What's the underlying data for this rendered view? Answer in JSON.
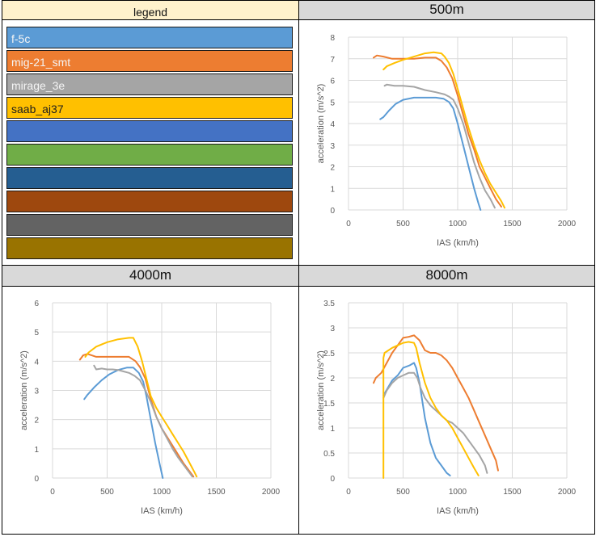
{
  "legend": {
    "title": "legend",
    "items": [
      {
        "label": "f-5c",
        "color": "#5b9bd5"
      },
      {
        "label": "mig-21_smt",
        "color": "#ed7d31"
      },
      {
        "label": "mirage_3e",
        "color": "#a5a5a5"
      },
      {
        "label": "saab_aj37",
        "color": "#ffc000"
      },
      {
        "label": "",
        "color": "#4472c4"
      },
      {
        "label": "",
        "color": "#70ad47"
      },
      {
        "label": "",
        "color": "#255e91"
      },
      {
        "label": "",
        "color": "#9e480e"
      },
      {
        "label": "",
        "color": "#636363"
      },
      {
        "label": "",
        "color": "#997300"
      }
    ]
  },
  "chart_data": [
    {
      "type": "line",
      "title": "500m",
      "xlabel": "IAS (km/h)",
      "ylabel": "acceleration (m/s^2)",
      "xlim": [
        0,
        2000
      ],
      "ylim": [
        0,
        8
      ],
      "xticks": [
        0,
        500,
        1000,
        1500,
        2000
      ],
      "yticks": [
        0,
        1,
        2,
        3,
        4,
        5,
        6,
        7,
        8
      ],
      "grid": true,
      "series": [
        {
          "name": "f-5c",
          "color": "#5b9bd5",
          "x": [
            290,
            320,
            370,
            430,
            500,
            600,
            700,
            800,
            870,
            920,
            960,
            1000,
            1050,
            1100,
            1150,
            1190,
            1210
          ],
          "y": [
            4.2,
            4.3,
            4.6,
            4.9,
            5.1,
            5.2,
            5.2,
            5.2,
            5.15,
            5.0,
            4.7,
            4.0,
            3.0,
            2.0,
            1.0,
            0.3,
            0
          ]
        },
        {
          "name": "mig-21_smt",
          "color": "#ed7d31",
          "x": [
            230,
            260,
            320,
            400,
            500,
            600,
            700,
            800,
            850,
            900,
            950,
            1000,
            1050,
            1100,
            1150,
            1200,
            1250,
            1300,
            1350,
            1400
          ],
          "y": [
            7.05,
            7.15,
            7.1,
            7.0,
            7.0,
            7.0,
            7.05,
            7.05,
            6.9,
            6.6,
            6.1,
            5.3,
            4.4,
            3.5,
            2.8,
            2.0,
            1.5,
            1.0,
            0.5,
            0.15
          ]
        },
        {
          "name": "mirage_3e",
          "color": "#a5a5a5",
          "x": [
            330,
            350,
            420,
            500,
            600,
            700,
            800,
            880,
            920,
            960,
            1000,
            1050,
            1100,
            1150,
            1200,
            1250,
            1300,
            1340
          ],
          "y": [
            5.75,
            5.8,
            5.75,
            5.75,
            5.7,
            5.55,
            5.45,
            5.35,
            5.25,
            5.1,
            4.7,
            4.0,
            3.1,
            2.2,
            1.5,
            0.9,
            0.5,
            0.1
          ]
        },
        {
          "name": "saab_aj37",
          "color": "#ffc000",
          "x": [
            320,
            350,
            420,
            500,
            600,
            700,
            780,
            850,
            880,
            920,
            960,
            1000,
            1050,
            1100,
            1150,
            1200,
            1250,
            1300,
            1350,
            1400,
            1430
          ],
          "y": [
            6.5,
            6.65,
            6.8,
            6.95,
            7.1,
            7.25,
            7.3,
            7.25,
            7.1,
            6.8,
            6.3,
            5.6,
            4.7,
            3.8,
            3.0,
            2.3,
            1.7,
            1.2,
            0.8,
            0.4,
            0.1
          ]
        }
      ]
    },
    {
      "type": "line",
      "title": "4000m",
      "xlabel": "IAS (km/h)",
      "ylabel": "acceleration (m/s^2)",
      "xlim": [
        0,
        2000
      ],
      "ylim": [
        0,
        6
      ],
      "xticks": [
        0,
        500,
        1000,
        1500,
        2000
      ],
      "yticks": [
        0,
        1,
        2,
        3,
        4,
        5,
        6
      ],
      "grid": true,
      "series": [
        {
          "name": "f-5c",
          "color": "#5b9bd5",
          "x": [
            290,
            320,
            380,
            450,
            520,
            600,
            680,
            740,
            790,
            830,
            860,
            900,
            940,
            980,
            1010
          ],
          "y": [
            2.7,
            2.85,
            3.1,
            3.35,
            3.55,
            3.7,
            3.78,
            3.78,
            3.6,
            3.3,
            2.8,
            2.0,
            1.2,
            0.5,
            0
          ]
        },
        {
          "name": "mig-21_smt",
          "color": "#ed7d31",
          "x": [
            250,
            280,
            320,
            400,
            500,
            600,
            700,
            760,
            800,
            850,
            900,
            950,
            1000,
            1050,
            1100,
            1150,
            1200,
            1250,
            1290
          ],
          "y": [
            4.05,
            4.2,
            4.25,
            4.15,
            4.15,
            4.15,
            4.15,
            4.0,
            3.8,
            3.4,
            2.7,
            2.1,
            1.7,
            1.4,
            1.1,
            0.8,
            0.5,
            0.25,
            0.05
          ]
        },
        {
          "name": "mirage_3e",
          "color": "#a5a5a5",
          "x": [
            380,
            400,
            450,
            500,
            550,
            600,
            650,
            700,
            750,
            800,
            850,
            900,
            950,
            1000,
            1050,
            1100,
            1150,
            1200,
            1250,
            1280
          ],
          "y": [
            3.85,
            3.72,
            3.75,
            3.72,
            3.72,
            3.7,
            3.65,
            3.6,
            3.5,
            3.35,
            3.0,
            2.6,
            2.1,
            1.7,
            1.35,
            1.0,
            0.7,
            0.45,
            0.2,
            0.05
          ]
        },
        {
          "name": "saab_aj37",
          "color": "#ffc000",
          "x": [
            300,
            330,
            400,
            500,
            600,
            700,
            740,
            780,
            820,
            860,
            900,
            950,
            1000,
            1050,
            1100,
            1150,
            1200,
            1250,
            1300,
            1320
          ],
          "y": [
            4.15,
            4.3,
            4.5,
            4.65,
            4.75,
            4.8,
            4.8,
            4.5,
            4.0,
            3.4,
            2.8,
            2.4,
            2.1,
            1.8,
            1.5,
            1.2,
            0.9,
            0.55,
            0.2,
            0.05
          ]
        }
      ]
    },
    {
      "type": "line",
      "title": "8000m",
      "xlabel": "IAS (km/h)",
      "ylabel": "acceleration (m/s^2)",
      "xlim": [
        0,
        2000
      ],
      "ylim": [
        0,
        3.5
      ],
      "xticks": [
        0,
        500,
        1000,
        1500,
        2000
      ],
      "yticks": [
        0,
        0.5,
        1,
        1.5,
        2,
        2.5,
        3,
        3.5
      ],
      "grid": true,
      "series": [
        {
          "name": "f-5c",
          "color": "#5b9bd5",
          "x": [
            320,
            360,
            400,
            450,
            500,
            560,
            600,
            620,
            650,
            700,
            750,
            800,
            850,
            900,
            930
          ],
          "y": [
            1.65,
            1.8,
            1.95,
            2.05,
            2.2,
            2.25,
            2.3,
            2.2,
            1.9,
            1.2,
            0.7,
            0.4,
            0.25,
            0.1,
            0.05
          ]
        },
        {
          "name": "mig-21_smt",
          "color": "#ed7d31",
          "x": [
            230,
            250,
            300,
            350,
            400,
            450,
            500,
            550,
            600,
            650,
            700,
            750,
            800,
            850,
            900,
            950,
            1000,
            1050,
            1100,
            1150,
            1200,
            1250,
            1300,
            1350,
            1370
          ],
          "y": [
            1.9,
            2.0,
            2.1,
            2.3,
            2.5,
            2.65,
            2.8,
            2.82,
            2.85,
            2.75,
            2.55,
            2.5,
            2.5,
            2.45,
            2.35,
            2.2,
            2.0,
            1.8,
            1.6,
            1.35,
            1.1,
            0.85,
            0.6,
            0.35,
            0.15
          ]
        },
        {
          "name": "mirage_3e",
          "color": "#a5a5a5",
          "x": [
            320,
            350,
            400,
            450,
            500,
            550,
            600,
            630,
            660,
            700,
            750,
            800,
            850,
            900,
            950,
            1000,
            1050,
            1100,
            1150,
            1200,
            1250,
            1270
          ],
          "y": [
            1.6,
            1.75,
            1.9,
            2.0,
            2.05,
            2.1,
            2.1,
            2.0,
            1.8,
            1.6,
            1.45,
            1.35,
            1.25,
            1.15,
            1.1,
            1.0,
            0.9,
            0.75,
            0.6,
            0.45,
            0.25,
            0.1
          ]
        },
        {
          "name": "saab_aj37",
          "color": "#ffc000",
          "x": [
            320,
            320,
            330,
            400,
            450,
            500,
            550,
            600,
            620,
            650,
            700,
            750,
            800,
            850,
            900,
            950,
            1000,
            1050,
            1100,
            1150,
            1190
          ],
          "y": [
            0,
            2.4,
            2.5,
            2.6,
            2.65,
            2.7,
            2.72,
            2.7,
            2.6,
            2.3,
            1.9,
            1.6,
            1.4,
            1.25,
            1.15,
            1.0,
            0.8,
            0.6,
            0.4,
            0.2,
            0.05
          ]
        }
      ]
    }
  ]
}
